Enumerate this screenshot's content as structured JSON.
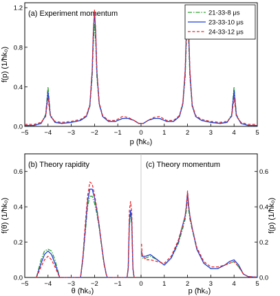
{
  "chart_data": [
    {
      "type": "line",
      "panel_label": "(a) Experiment momentum",
      "xlabel": "p (ħk₀)",
      "ylabel": "f(p) (1/ħk₀)",
      "xlim": [
        -5,
        5
      ],
      "ylim": [
        0,
        1.25
      ],
      "xticks": [
        "−5",
        "−4",
        "−3",
        "−2",
        "−1",
        "0",
        "1",
        "2",
        "3",
        "4",
        "5"
      ],
      "yticks": [
        "0.0",
        "0.4",
        "0.8",
        "1.2"
      ],
      "legend": "top-right",
      "series": [
        {
          "name": "21-33-8 μs",
          "color": "#2ca02c",
          "dash": "dashdot",
          "x": [
            -5,
            -4.6,
            -4.3,
            -4.1,
            -4.0,
            -3.9,
            -3.7,
            -3.4,
            -3.0,
            -2.6,
            -2.35,
            -2.2,
            -2.1,
            -2.05,
            -2.0,
            -1.95,
            -1.9,
            -1.8,
            -1.65,
            -1.4,
            -1.1,
            -0.8,
            -0.55,
            -0.3,
            -0.1,
            0,
            0.1,
            0.3,
            0.55,
            0.8,
            1.1,
            1.4,
            1.65,
            1.8,
            1.9,
            1.95,
            2.0,
            2.05,
            2.1,
            2.2,
            2.35,
            2.6,
            3.0,
            3.4,
            3.7,
            3.9,
            4.0,
            4.1,
            4.3,
            4.6,
            5
          ],
          "y": [
            0.01,
            0.01,
            0.03,
            0.12,
            0.4,
            0.12,
            0.04,
            0.03,
            0.04,
            0.06,
            0.1,
            0.2,
            0.5,
            0.85,
            1.04,
            0.85,
            0.5,
            0.22,
            0.1,
            0.05,
            0.05,
            0.08,
            0.08,
            0.06,
            0.03,
            0.03,
            0.03,
            0.06,
            0.08,
            0.08,
            0.05,
            0.05,
            0.1,
            0.22,
            0.5,
            0.85,
            1.04,
            0.85,
            0.5,
            0.2,
            0.1,
            0.06,
            0.04,
            0.03,
            0.04,
            0.12,
            0.4,
            0.12,
            0.03,
            0.01,
            0.01
          ]
        },
        {
          "name": "23-33-10 μs",
          "color": "#1f3fd6",
          "dash": "solid",
          "x": [
            -5,
            -4.6,
            -4.3,
            -4.1,
            -4.0,
            -3.9,
            -3.7,
            -3.4,
            -3.0,
            -2.6,
            -2.35,
            -2.2,
            -2.1,
            -2.05,
            -2.0,
            -1.95,
            -1.9,
            -1.8,
            -1.65,
            -1.4,
            -1.1,
            -0.8,
            -0.55,
            -0.3,
            -0.1,
            0,
            0.1,
            0.3,
            0.55,
            0.8,
            1.1,
            1.4,
            1.65,
            1.8,
            1.9,
            1.95,
            2.0,
            2.05,
            2.1,
            2.2,
            2.35,
            2.6,
            3.0,
            3.4,
            3.7,
            3.9,
            4.0,
            4.1,
            4.3,
            4.6,
            5
          ],
          "y": [
            0.01,
            0.01,
            0.03,
            0.11,
            0.35,
            0.11,
            0.04,
            0.03,
            0.04,
            0.06,
            0.1,
            0.21,
            0.55,
            0.95,
            1.16,
            0.95,
            0.55,
            0.23,
            0.1,
            0.05,
            0.05,
            0.08,
            0.08,
            0.06,
            0.03,
            0.03,
            0.03,
            0.06,
            0.08,
            0.08,
            0.05,
            0.05,
            0.1,
            0.23,
            0.55,
            0.95,
            1.17,
            0.95,
            0.55,
            0.21,
            0.1,
            0.06,
            0.04,
            0.03,
            0.04,
            0.11,
            0.36,
            0.11,
            0.03,
            0.01,
            0.01
          ]
        },
        {
          "name": "24-33-12 μs",
          "color": "#e8262a",
          "dash": "dashed",
          "x": [
            -5,
            -4.6,
            -4.3,
            -4.1,
            -4.0,
            -3.9,
            -3.7,
            -3.4,
            -3.0,
            -2.6,
            -2.35,
            -2.2,
            -2.1,
            -2.05,
            -2.0,
            -1.95,
            -1.9,
            -1.8,
            -1.65,
            -1.4,
            -1.1,
            -0.8,
            -0.55,
            -0.3,
            -0.1,
            0,
            0.1,
            0.3,
            0.55,
            0.8,
            1.1,
            1.4,
            1.65,
            1.8,
            1.9,
            1.95,
            2.0,
            2.05,
            2.1,
            2.2,
            2.35,
            2.6,
            3.0,
            3.4,
            3.7,
            3.9,
            4.0,
            4.1,
            4.3,
            4.6,
            5
          ],
          "y": [
            0.02,
            0.02,
            0.04,
            0.1,
            0.29,
            0.1,
            0.05,
            0.04,
            0.05,
            0.07,
            0.11,
            0.22,
            0.58,
            0.98,
            1.18,
            0.98,
            0.58,
            0.24,
            0.11,
            0.06,
            0.06,
            0.1,
            0.09,
            0.06,
            0.03,
            0.03,
            0.03,
            0.06,
            0.09,
            0.1,
            0.06,
            0.06,
            0.11,
            0.24,
            0.58,
            0.98,
            1.18,
            0.98,
            0.58,
            0.22,
            0.11,
            0.07,
            0.05,
            0.04,
            0.05,
            0.1,
            0.29,
            0.1,
            0.04,
            0.02,
            0.02
          ]
        }
      ]
    },
    {
      "type": "line",
      "panel_label": "(b) Theory rapidity",
      "xlabel": "θ (ħk₀)",
      "ylabel": "f(θ) (1/ħk₀)",
      "xlim": [
        -5,
        0
      ],
      "ylim": [
        0,
        0.7
      ],
      "xticks": [
        "−5",
        "−4",
        "−3",
        "−2",
        "−1",
        "0"
      ],
      "yticks": [
        "0.0",
        "0.2",
        "0.4",
        "0.6"
      ],
      "series": [
        {
          "name": "21-33-8 μs",
          "color": "#2ca02c",
          "dash": "dashdot",
          "x": [
            -4.5,
            -4.4,
            -4.3,
            -4.15,
            -4.0,
            -3.85,
            -3.7,
            -3.6,
            -3.5,
            -3.4,
            -3.3,
            -3.0,
            -2.7,
            -2.6,
            -2.5,
            -2.4,
            -2.3,
            -2.2,
            -2.1,
            -2.0,
            -1.9,
            -1.8,
            -1.7,
            -1.6,
            -1.5,
            -1.45,
            -1.4,
            -1.3,
            -0.8,
            -0.6,
            -0.55,
            -0.5,
            -0.45,
            -0.4,
            -0.35,
            -0.3
          ],
          "y": [
            0,
            0.05,
            0.1,
            0.15,
            0.16,
            0.15,
            0.1,
            0.05,
            0,
            0,
            0,
            0,
            0,
            0,
            0.1,
            0.25,
            0.4,
            0.46,
            0.46,
            0.42,
            0.36,
            0.28,
            0.18,
            0.08,
            0.02,
            0,
            0,
            0,
            0,
            0,
            0.05,
            0.3,
            0.36,
            0.3,
            0.05,
            0
          ]
        },
        {
          "name": "23-33-10 μs",
          "color": "#1f3fd6",
          "dash": "solid",
          "x": [
            -4.5,
            -4.4,
            -4.3,
            -4.15,
            -4.0,
            -3.85,
            -3.7,
            -3.6,
            -3.5,
            -3.4,
            -3.3,
            -3.0,
            -2.7,
            -2.6,
            -2.5,
            -2.4,
            -2.3,
            -2.2,
            -2.1,
            -2.0,
            -1.9,
            -1.8,
            -1.7,
            -1.6,
            -1.5,
            -1.45,
            -1.4,
            -1.3,
            -0.8,
            -0.6,
            -0.55,
            -0.5,
            -0.45,
            -0.4,
            -0.35,
            -0.3
          ],
          "y": [
            0,
            0.04,
            0.08,
            0.13,
            0.15,
            0.13,
            0.08,
            0.04,
            0,
            0,
            0,
            0,
            0,
            0,
            0.11,
            0.27,
            0.43,
            0.5,
            0.5,
            0.45,
            0.38,
            0.29,
            0.19,
            0.09,
            0.02,
            0,
            0,
            0,
            0,
            0,
            0.05,
            0.32,
            0.38,
            0.32,
            0.05,
            0
          ]
        },
        {
          "name": "24-33-12 μs",
          "color": "#e8262a",
          "dash": "dashed",
          "x": [
            -4.5,
            -4.4,
            -4.3,
            -4.15,
            -4.0,
            -3.85,
            -3.7,
            -3.6,
            -3.5,
            -3.4,
            -3.3,
            -3.0,
            -2.7,
            -2.6,
            -2.5,
            -2.4,
            -2.3,
            -2.2,
            -2.1,
            -2.0,
            -1.9,
            -1.8,
            -1.7,
            -1.6,
            -1.5,
            -1.45,
            -1.4,
            -1.3,
            -0.8,
            -0.6,
            -0.55,
            -0.5,
            -0.45,
            -0.4,
            -0.35,
            -0.3
          ],
          "y": [
            0,
            0.03,
            0.06,
            0.1,
            0.12,
            0.1,
            0.06,
            0.03,
            0,
            0,
            0,
            0,
            0,
            0,
            0.12,
            0.3,
            0.46,
            0.54,
            0.53,
            0.47,
            0.39,
            0.3,
            0.19,
            0.09,
            0.02,
            0,
            0,
            0,
            0,
            0,
            0.06,
            0.38,
            0.43,
            0.37,
            0.06,
            0
          ]
        }
      ]
    },
    {
      "type": "line",
      "panel_label": "(c) Theory momentum",
      "xlabel": "p (ħk₀)",
      "ylabel": "f(p) (1/ħk₀)",
      "xlim": [
        0,
        5
      ],
      "ylim": [
        0,
        0.7
      ],
      "xticks": [
        "0",
        "1",
        "2",
        "3",
        "4",
        "5"
      ],
      "yticks": [
        "0.0",
        "0.2",
        "0.4",
        "0.6"
      ],
      "series": [
        {
          "name": "21-33-8 μs",
          "color": "#2ca02c",
          "dash": "dashdot",
          "x": [
            0.02,
            0.05,
            0.2,
            0.4,
            0.7,
            1.0,
            1.3,
            1.6,
            1.8,
            1.9,
            1.95,
            2.0,
            2.05,
            2.1,
            2.2,
            2.4,
            2.7,
            3.0,
            3.3,
            3.6,
            3.8,
            4.0,
            4.2,
            4.4,
            4.6,
            4.8,
            5.0
          ],
          "y": [
            0.14,
            0.11,
            0.11,
            0.12,
            0.1,
            0.07,
            0.11,
            0.19,
            0.28,
            0.33,
            0.38,
            0.46,
            0.38,
            0.33,
            0.27,
            0.16,
            0.08,
            0.05,
            0.05,
            0.07,
            0.08,
            0.09,
            0.06,
            0.02,
            0.005,
            0.003,
            0.002
          ]
        },
        {
          "name": "23-33-10 μs",
          "color": "#1f3fd6",
          "dash": "solid",
          "x": [
            0.02,
            0.05,
            0.2,
            0.4,
            0.7,
            1.0,
            1.3,
            1.6,
            1.8,
            1.9,
            1.95,
            2.0,
            2.05,
            2.1,
            2.2,
            2.4,
            2.7,
            3.0,
            3.3,
            3.6,
            3.8,
            4.0,
            4.2,
            4.4,
            4.6,
            4.8,
            5.0
          ],
          "y": [
            0.15,
            0.12,
            0.12,
            0.13,
            0.1,
            0.07,
            0.11,
            0.2,
            0.3,
            0.35,
            0.4,
            0.48,
            0.4,
            0.35,
            0.28,
            0.16,
            0.08,
            0.05,
            0.05,
            0.07,
            0.09,
            0.1,
            0.07,
            0.02,
            0.005,
            0.003,
            0.002
          ]
        },
        {
          "name": "24-33-12 μs",
          "color": "#e8262a",
          "dash": "dashed",
          "x": [
            0.02,
            0.05,
            0.2,
            0.4,
            0.7,
            1.0,
            1.3,
            1.6,
            1.8,
            1.9,
            1.95,
            2.0,
            2.05,
            2.1,
            2.2,
            2.4,
            2.7,
            3.0,
            3.3,
            3.6,
            3.8,
            4.0,
            4.2,
            4.4,
            4.6,
            4.8,
            5.0
          ],
          "y": [
            0.19,
            0.13,
            0.1,
            0.1,
            0.09,
            0.08,
            0.12,
            0.21,
            0.3,
            0.35,
            0.41,
            0.49,
            0.41,
            0.35,
            0.28,
            0.17,
            0.09,
            0.06,
            0.06,
            0.07,
            0.08,
            0.09,
            0.06,
            0.02,
            0.005,
            0.003,
            0.002
          ]
        }
      ]
    }
  ]
}
